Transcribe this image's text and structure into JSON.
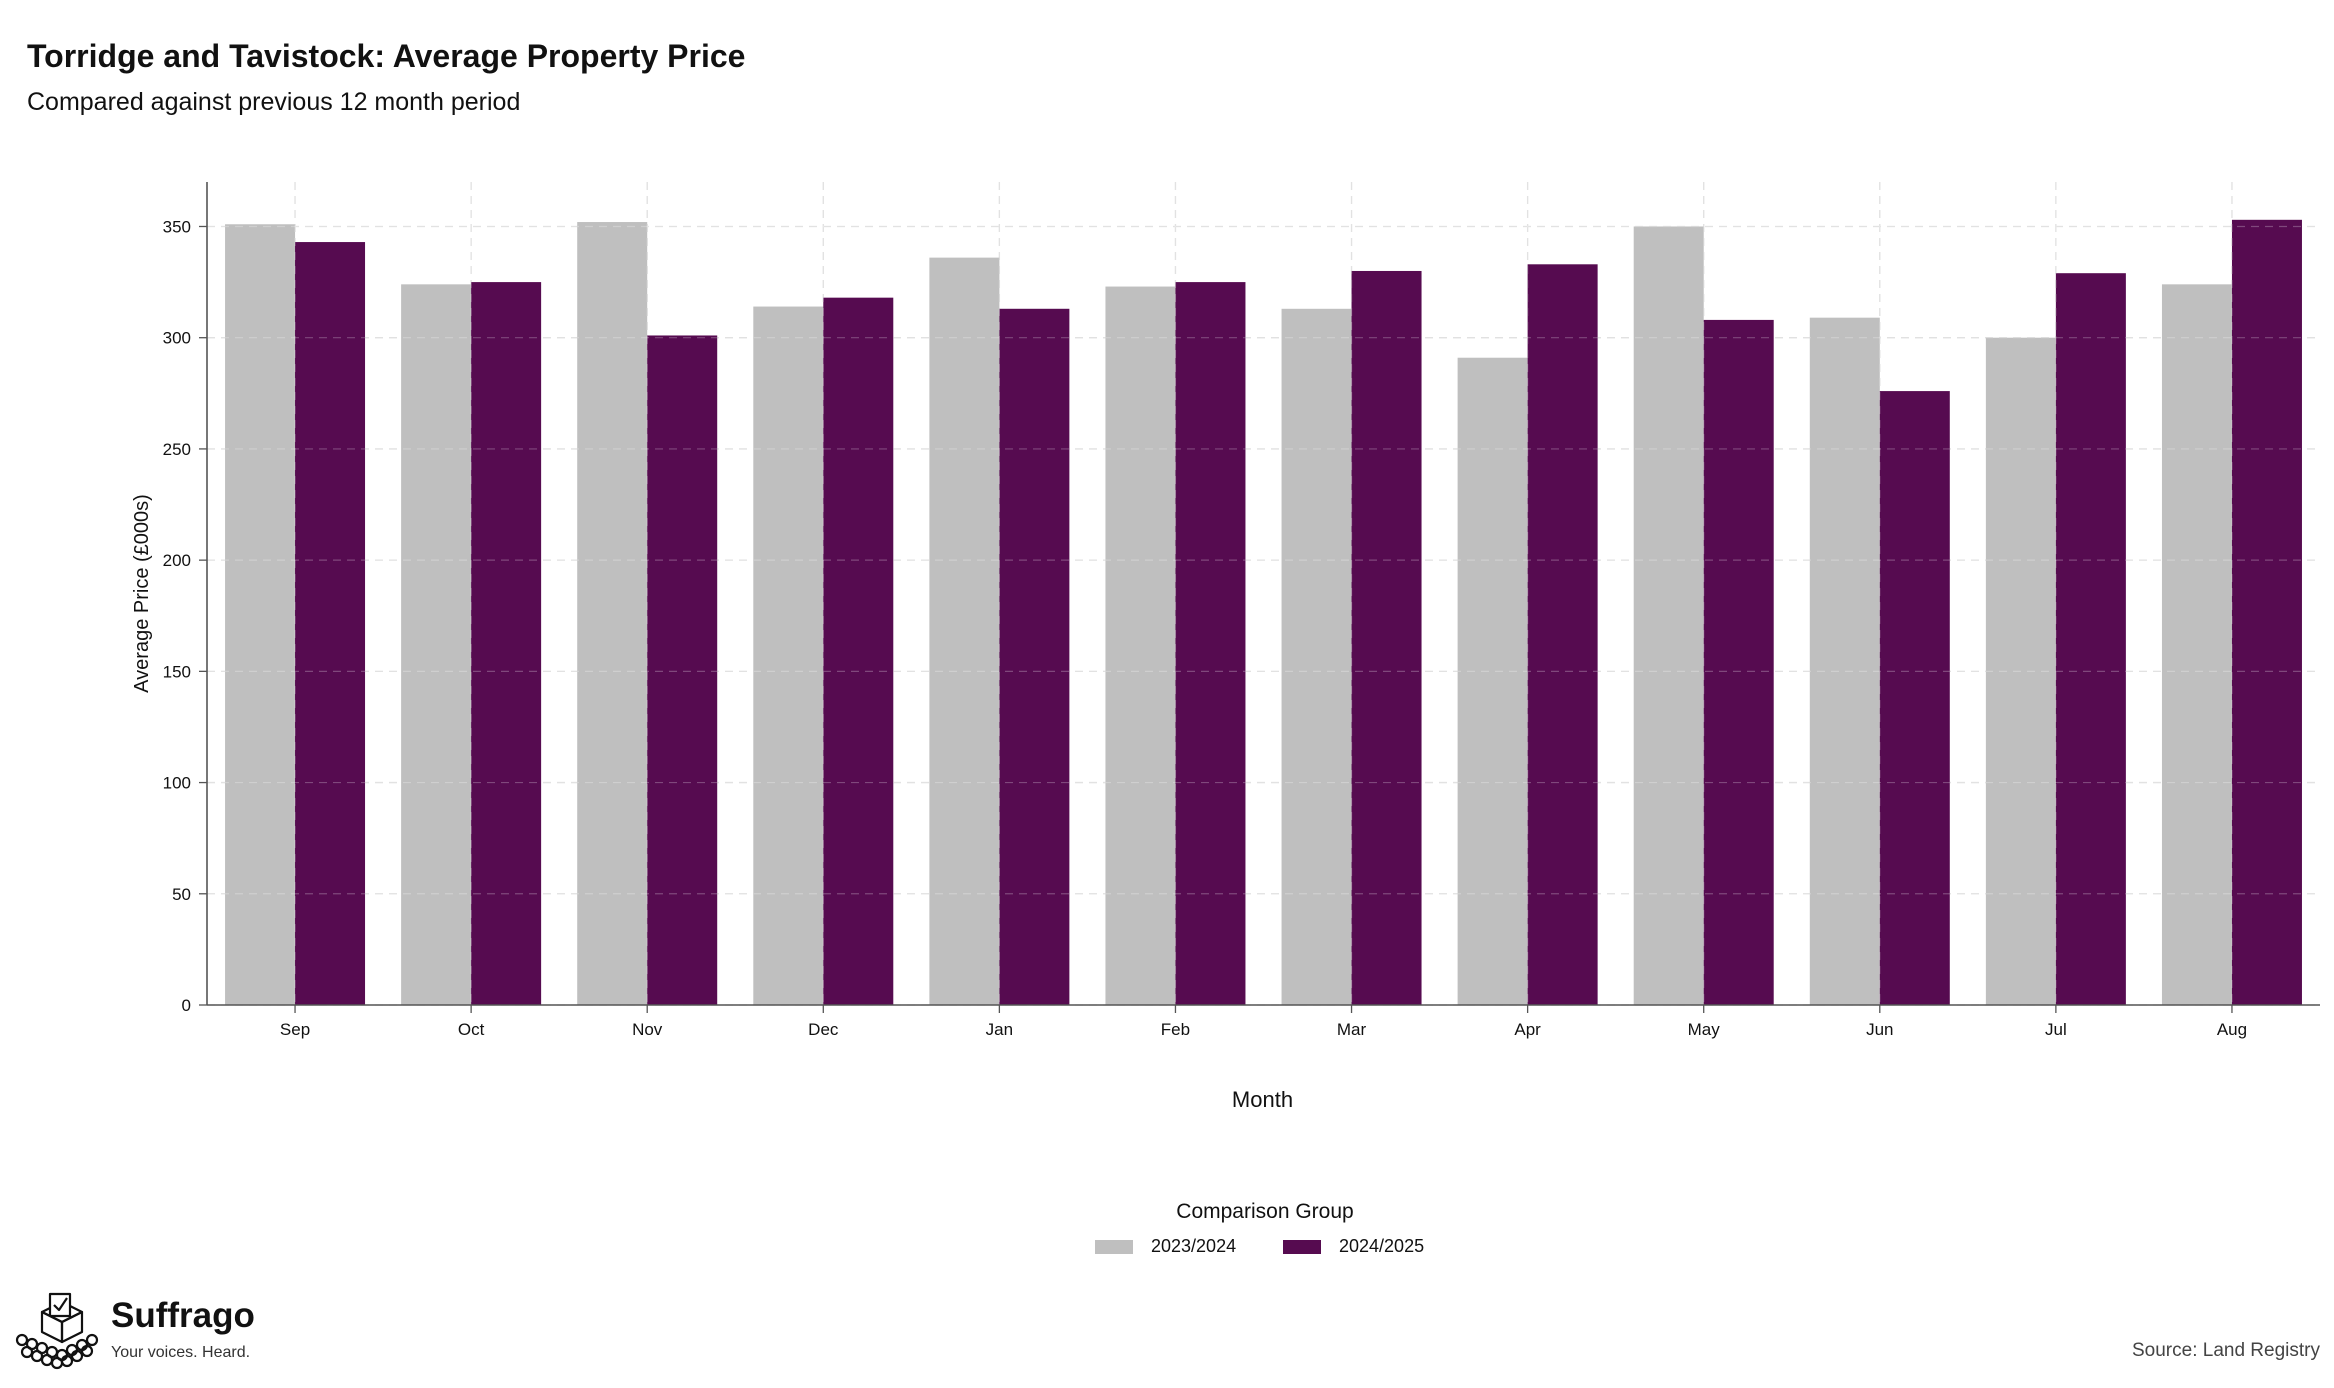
{
  "title": "Torridge and Tavistock: Average Property Price",
  "subtitle": "Compared against previous 12 month period",
  "source": "Source: Land Registry",
  "logo": {
    "name": "Suffrago",
    "tagline": "Your voices. Heard."
  },
  "colors": {
    "series_2023": "#bfbfbf",
    "series_2024": "#560b50",
    "grid": "#d9d9d9",
    "axis": "#555555"
  },
  "chart_data": {
    "type": "bar",
    "xlabel": "Month",
    "ylabel": "Average Price (£000s)",
    "ylim": [
      0,
      370
    ],
    "yticks": [
      0,
      50,
      100,
      150,
      200,
      250,
      300,
      350
    ],
    "grid": true,
    "legend": {
      "title": "Comparison Group",
      "placement": "bottom-center"
    },
    "categories": [
      "Sep",
      "Oct",
      "Nov",
      "Dec",
      "Jan",
      "Feb",
      "Mar",
      "Apr",
      "May",
      "Jun",
      "Jul",
      "Aug"
    ],
    "series": [
      {
        "name": "2023/2024",
        "color": "#bfbfbf",
        "values": [
          351,
          324,
          352,
          314,
          336,
          323,
          313,
          291,
          350,
          309,
          300,
          324
        ]
      },
      {
        "name": "2024/2025",
        "color": "#560b50",
        "values": [
          343,
          325,
          301,
          318,
          313,
          325,
          330,
          333,
          308,
          276,
          329,
          353
        ]
      }
    ]
  }
}
